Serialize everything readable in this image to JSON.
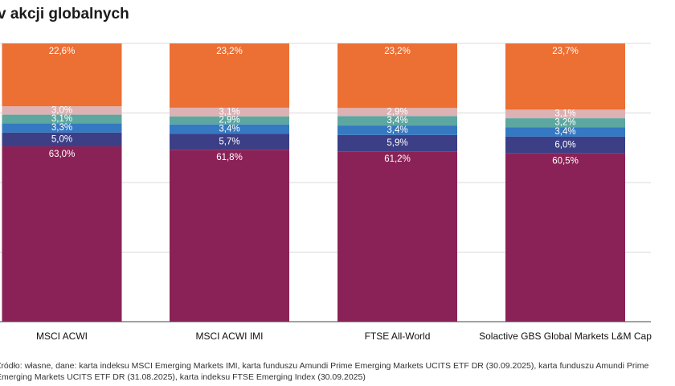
{
  "title": "v akcji globalnych",
  "source": {
    "line1": "Źródło: własne, dane: karta indeksu MSCI Emerging Markets IMI, karta funduszu Amundi Prime Emerging Markets UCITS ETF DR (30.09.2025), karta funduszu Amundi Prime",
    "line2": "Emerging Markets UCITS ETF DR (31.08.2025), karta indeksu FTSE Emerging Index (30.09.2025)"
  },
  "chart_data": {
    "type": "bar",
    "stacked": true,
    "ylim": [
      0,
      100
    ],
    "grid": true,
    "categories": [
      "MSCI ACWI",
      "MSCI ACWI IMI",
      "FTSE All-World",
      "Solactive GBS Global Markets L&M Cap"
    ],
    "series": [
      {
        "color": "#8b2257",
        "values": [
          63.0,
          61.8,
          61.2,
          60.5
        ],
        "labels": [
          "63,0%",
          "61,8%",
          "61,2%",
          "60,5%"
        ]
      },
      {
        "color": "#3c3f86",
        "values": [
          5.0,
          5.7,
          5.9,
          6.0
        ],
        "labels": [
          "5,0%",
          "5,7%",
          "5,9%",
          "6,0%"
        ]
      },
      {
        "color": "#3579c2",
        "values": [
          3.3,
          3.4,
          3.4,
          3.4
        ],
        "labels": [
          "3,3%",
          "3,4%",
          "3,4%",
          "3,4%"
        ]
      },
      {
        "color": "#5ca7a0",
        "values": [
          3.1,
          2.9,
          3.4,
          3.2
        ],
        "labels": [
          "3,1%",
          "2,9%",
          "3,4%",
          "3,2%"
        ]
      },
      {
        "color": "#dcb2b4",
        "values": [
          3.0,
          3.1,
          2.9,
          3.1
        ],
        "labels": [
          "3,0%",
          "3,1%",
          "2,9%",
          "3,1%"
        ]
      },
      {
        "color": "#ec6f34",
        "values": [
          22.6,
          23.2,
          23.2,
          23.7
        ],
        "labels": [
          "22,6%",
          "23,2%",
          "23,2%",
          "23,7%"
        ]
      }
    ]
  }
}
